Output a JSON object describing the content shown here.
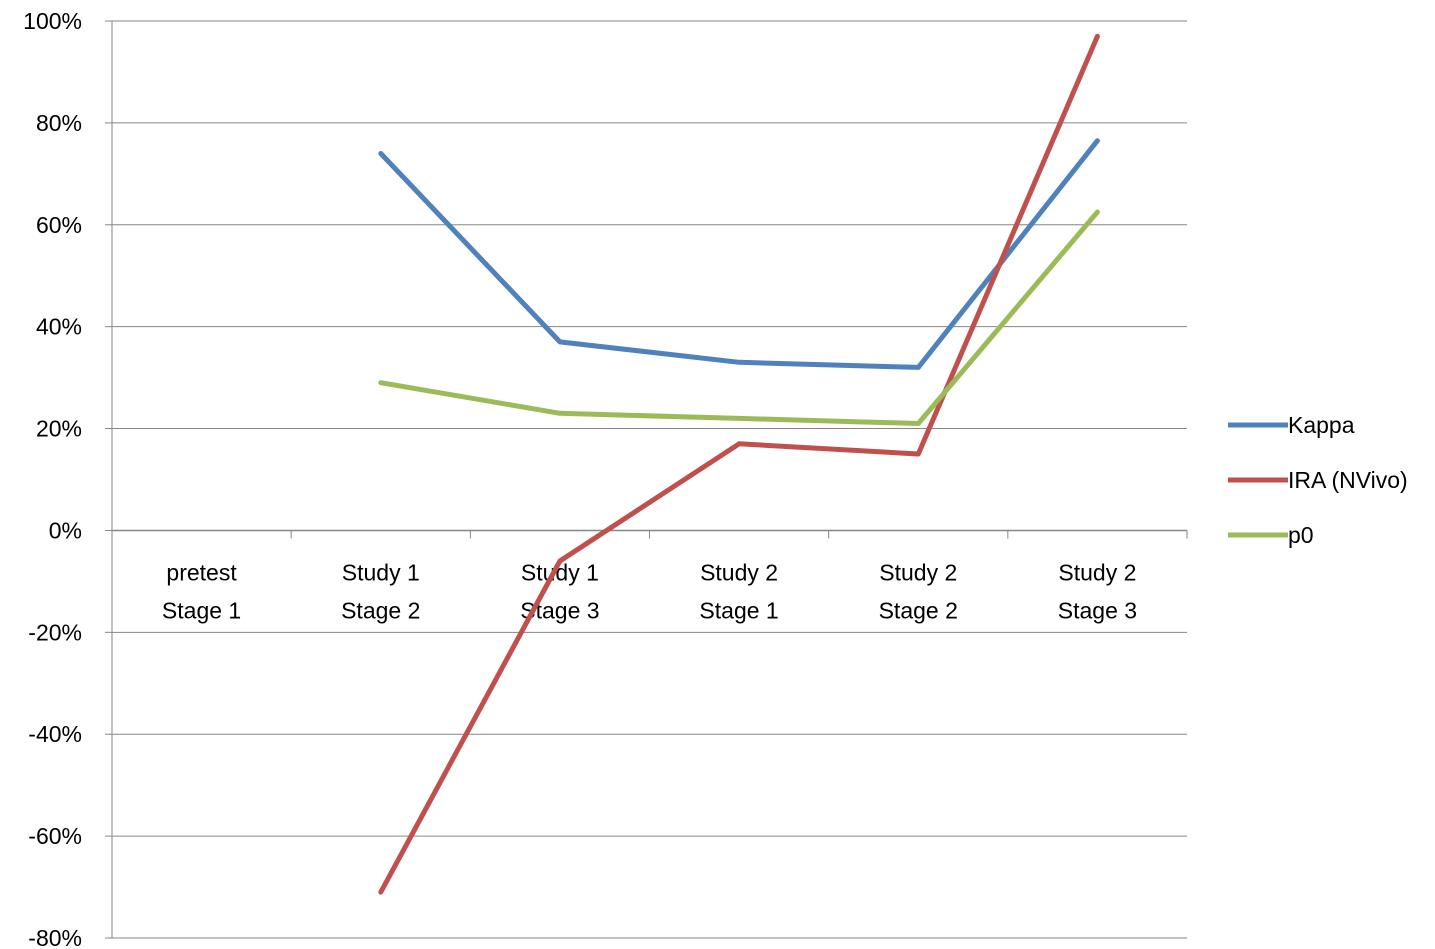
{
  "chart_data": {
    "type": "line",
    "title": "",
    "xlabel": "",
    "ylabel": "",
    "categories": [
      [
        "pretest",
        "Stage 1"
      ],
      [
        "Study 1",
        "Stage 2"
      ],
      [
        "Study 1",
        "Stage 3"
      ],
      [
        "Study 2",
        "Stage 1"
      ],
      [
        "Study 2",
        "Stage 2"
      ],
      [
        "Study 2",
        "Stage 3"
      ]
    ],
    "ylim": [
      -0.8,
      1.0
    ],
    "y_ticks": [
      1.0,
      0.8,
      0.6,
      0.4,
      0.2,
      0.0,
      -0.2,
      -0.4,
      -0.6,
      -0.8
    ],
    "y_tick_labels": [
      "100%",
      "80%",
      "60%",
      "40%",
      "20%",
      "0%",
      "-20%",
      "-40%",
      "-60%",
      "-80%"
    ],
    "grid": "horizontal",
    "legend_position": "right",
    "series": [
      {
        "name": "Kappa",
        "color": "#4F81BD",
        "values": [
          null,
          0.74,
          0.37,
          0.33,
          0.32,
          0.765
        ]
      },
      {
        "name": "IRA (NVivo)",
        "color": "#C0504D",
        "values": [
          null,
          -0.71,
          -0.06,
          0.17,
          0.15,
          0.97
        ]
      },
      {
        "name": "p0",
        "color": "#9BBB59",
        "values": [
          null,
          0.29,
          0.23,
          0.22,
          0.21,
          0.625
        ]
      }
    ]
  }
}
